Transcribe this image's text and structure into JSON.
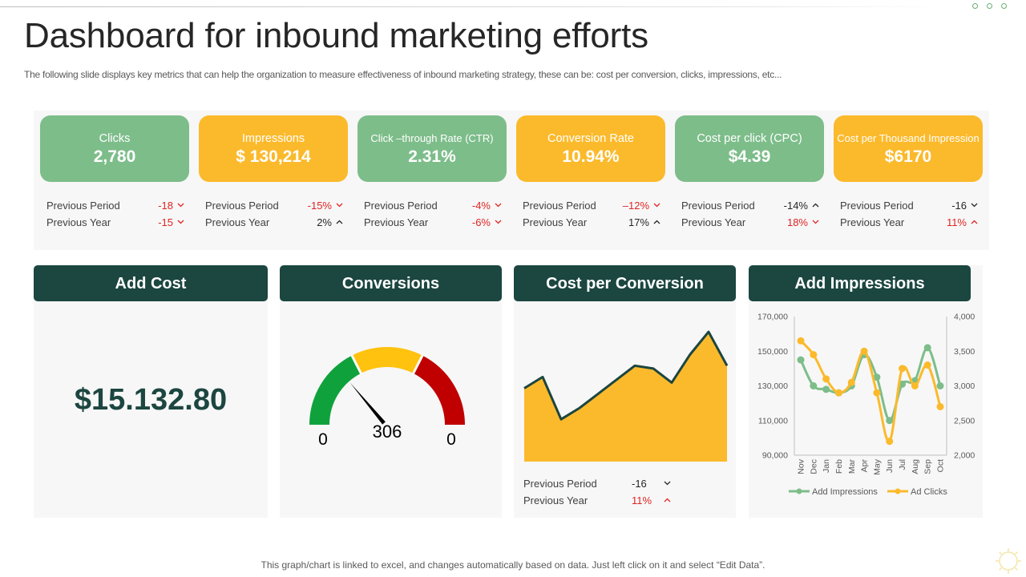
{
  "header": {
    "title": "Dashboard for inbound marketing efforts",
    "subtitle": "The following slide displays key metrics that can help the organization to measure effectiveness of inbound marketing strategy, these can be: cost per conversion, clicks, impressions, etc..."
  },
  "kpis": [
    {
      "label": "Clicks",
      "value": "2,780",
      "color": "green",
      "previous_period_label": "Previous Period",
      "previous_period": "-18",
      "previous_period_trend": "down",
      "previous_period_tone": "neg",
      "previous_year_label": "Previous Year",
      "previous_year": "-15",
      "previous_year_trend": "down",
      "previous_year_tone": "neg"
    },
    {
      "label": "Impressions",
      "value": "$ 130,214",
      "color": "yellow",
      "previous_period_label": "Previous Period",
      "previous_period": "-15%",
      "previous_period_trend": "down",
      "previous_period_tone": "neg",
      "previous_year_label": "Previous Year",
      "previous_year": "2%",
      "previous_year_trend": "up",
      "previous_year_tone": "pos"
    },
    {
      "label": "Click –through Rate (CTR)",
      "value": "2.31%",
      "color": "green",
      "previous_period_label": "Previous Period",
      "previous_period": "-4%",
      "previous_period_trend": "down",
      "previous_period_tone": "neg",
      "previous_year_label": "Previous Year",
      "previous_year": "-6%",
      "previous_year_trend": "down",
      "previous_year_tone": "neg"
    },
    {
      "label": "Conversion Rate",
      "value": "10.94%",
      "color": "yellow",
      "previous_period_label": "Previous Period",
      "previous_period": "–12%",
      "previous_period_trend": "down",
      "previous_period_tone": "neg",
      "previous_year_label": "Previous Year",
      "previous_year": "17%",
      "previous_year_trend": "up",
      "previous_year_tone": "pos"
    },
    {
      "label": "Cost per click (CPC)",
      "value": "$4.39",
      "color": "green",
      "previous_period_label": "Previous Period",
      "previous_period": "-14%",
      "previous_period_trend": "up",
      "previous_period_tone": "pos",
      "previous_year_label": "Previous Year",
      "previous_year": "18%",
      "previous_year_trend": "down",
      "previous_year_tone": "neg"
    },
    {
      "label": "Cost per Thousand Impression",
      "value": "$6170",
      "color": "yellow",
      "previous_period_label": "Previous Period",
      "previous_period": "-16",
      "previous_period_trend": "down",
      "previous_period_tone": "pos",
      "previous_year_label": "Previous Year",
      "previous_year": "11%",
      "previous_year_trend": "up",
      "previous_year_tone": "neg"
    }
  ],
  "panels": {
    "add_cost": {
      "title": "Add Cost",
      "value": "$15.132.80"
    },
    "conversions": {
      "title": "Conversions",
      "value": "306",
      "min_label": "0",
      "max_label": "0",
      "needle_fraction": 0.27,
      "colors": {
        "low": "#0fa23c",
        "mid": "#ffc20e",
        "high": "#c00000"
      }
    },
    "cost_per_conversion": {
      "title": "Cost per Conversion",
      "previous_period_label": "Previous Period",
      "previous_period": "-16",
      "previous_period_trend": "down",
      "previous_year_label": "Previous Year",
      "previous_year": "11%",
      "previous_year_trend": "up"
    },
    "add_impressions": {
      "title": "Add Impressions"
    }
  },
  "chart_data": [
    {
      "type": "area",
      "values": [
        230,
        250,
        175,
        195,
        220,
        245,
        270,
        265,
        240,
        290,
        330,
        270
      ],
      "ylim": [
        100,
        350
      ],
      "color": "#fbba2c",
      "line_color": "#1c4640"
    },
    {
      "type": "line",
      "categories": [
        "Nov",
        "Dec",
        "Jan",
        "Feb",
        "Mar",
        "Apr",
        "May",
        "Jun",
        "Jul",
        "Aug",
        "Sep",
        "Oct"
      ],
      "series": [
        {
          "name": "Add Impressions",
          "axis": "left",
          "color": "#7dbd8a",
          "values": [
            145000,
            130000,
            128000,
            126000,
            130000,
            148000,
            135000,
            110000,
            131000,
            133000,
            152000,
            130000
          ]
        },
        {
          "name": "Ad Clicks",
          "axis": "right",
          "color": "#fbba2c",
          "values": [
            3650,
            3450,
            3100,
            2900,
            3050,
            3500,
            2900,
            2200,
            3250,
            3000,
            3300,
            2700
          ]
        }
      ],
      "y_left_ticks": [
        "170,000",
        "150,000",
        "130,000",
        "110,000",
        "90,000"
      ],
      "y_right_ticks": [
        "4,000",
        "3,500",
        "3,000",
        "2,500",
        "2,000"
      ],
      "ylim_left": [
        90000,
        170000
      ],
      "ylim_right": [
        2000,
        4000
      ],
      "legend": "bottom"
    }
  ],
  "footer": {
    "note": "This graph/chart is linked to excel, and changes automatically based on data. Just left click on it and select “Edit Data”."
  }
}
